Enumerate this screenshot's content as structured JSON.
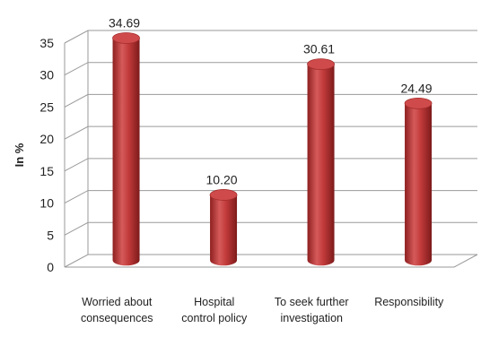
{
  "chart_data": {
    "type": "bar",
    "ylabel": "In %",
    "ylim": [
      0,
      35
    ],
    "yticks": [
      0,
      5,
      10,
      15,
      20,
      25,
      30,
      35
    ],
    "categories": [
      [
        "Worried about",
        "consequences"
      ],
      [
        "Hospital",
        "control policy"
      ],
      [
        "To seek further",
        "investigation"
      ],
      [
        "Responsibility"
      ]
    ],
    "values": [
      34.69,
      10.2,
      30.61,
      24.49
    ],
    "data_labels": [
      "34.69",
      "10.20",
      "30.61",
      "24.49"
    ],
    "bar_color": "#b83232",
    "grid": true,
    "style": "3d-cylinder"
  }
}
